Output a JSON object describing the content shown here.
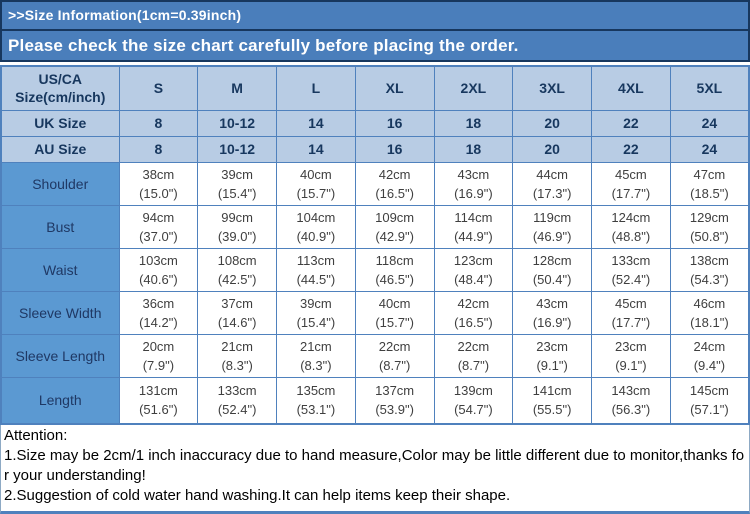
{
  "header": {
    "title": ">>Size Information(1cm=0.39inch)",
    "subtitle": "Please check the size chart carefully before placing the order."
  },
  "size_table": {
    "corner_label_line1": "US/CA",
    "corner_label_line2": "Size(cm/inch)",
    "sizes": [
      "S",
      "M",
      "L",
      "XL",
      "2XL",
      "3XL",
      "4XL",
      "5XL"
    ],
    "region_rows": [
      {
        "label": "UK Size",
        "values": [
          "8",
          "10-12",
          "14",
          "16",
          "18",
          "20",
          "22",
          "24"
        ]
      },
      {
        "label": "AU Size",
        "values": [
          "8",
          "10-12",
          "14",
          "16",
          "18",
          "20",
          "22",
          "24"
        ]
      }
    ],
    "measurement_rows": [
      {
        "label": "Shoulder",
        "cells": [
          [
            "38cm",
            "(15.0\")"
          ],
          [
            "39cm",
            "(15.4\")"
          ],
          [
            "40cm",
            "(15.7\")"
          ],
          [
            "42cm",
            "(16.5\")"
          ],
          [
            "43cm",
            "(16.9\")"
          ],
          [
            "44cm",
            "(17.3\")"
          ],
          [
            "45cm",
            "(17.7\")"
          ],
          [
            "47cm",
            "(18.5\")"
          ]
        ]
      },
      {
        "label": "Bust",
        "cells": [
          [
            "94cm",
            "(37.0\")"
          ],
          [
            "99cm",
            "(39.0\")"
          ],
          [
            "104cm",
            "(40.9\")"
          ],
          [
            "109cm",
            "(42.9\")"
          ],
          [
            "114cm",
            "(44.9\")"
          ],
          [
            "119cm",
            "(46.9\")"
          ],
          [
            "124cm",
            "(48.8\")"
          ],
          [
            "129cm",
            "(50.8\")"
          ]
        ]
      },
      {
        "label": "Waist",
        "cells": [
          [
            "103cm",
            "(40.6\")"
          ],
          [
            "108cm",
            "(42.5\")"
          ],
          [
            "113cm",
            "(44.5\")"
          ],
          [
            "118cm",
            "(46.5\")"
          ],
          [
            "123cm",
            "(48.4\")"
          ],
          [
            "128cm",
            "(50.4\")"
          ],
          [
            "133cm",
            "(52.4\")"
          ],
          [
            "138cm",
            "(54.3\")"
          ]
        ]
      },
      {
        "label": "Sleeve Width",
        "cells": [
          [
            "36cm",
            "(14.2\")"
          ],
          [
            "37cm",
            "(14.6\")"
          ],
          [
            "39cm",
            "(15.4\")"
          ],
          [
            "40cm",
            "(15.7\")"
          ],
          [
            "42cm",
            "(16.5\")"
          ],
          [
            "43cm",
            "(16.9\")"
          ],
          [
            "45cm",
            "(17.7\")"
          ],
          [
            "46cm",
            "(18.1\")"
          ]
        ]
      },
      {
        "label": "Sleeve Length",
        "cells": [
          [
            "20cm",
            "(7.9\")"
          ],
          [
            "21cm",
            "(8.3\")"
          ],
          [
            "21cm",
            "(8.3\")"
          ],
          [
            "22cm",
            "(8.7\")"
          ],
          [
            "22cm",
            "(8.7\")"
          ],
          [
            "23cm",
            "(9.1\")"
          ],
          [
            "23cm",
            "(9.1\")"
          ],
          [
            "24cm",
            "(9.4\")"
          ]
        ]
      },
      {
        "label": "Length",
        "cells": [
          [
            "131cm",
            "(51.6\")"
          ],
          [
            "133cm",
            "(52.4\")"
          ],
          [
            "135cm",
            "(53.1\")"
          ],
          [
            "137cm",
            "(53.9\")"
          ],
          [
            "139cm",
            "(54.7\")"
          ],
          [
            "141cm",
            "(55.5\")"
          ],
          [
            "143cm",
            "(56.3\")"
          ],
          [
            "145cm",
            "(57.1\")"
          ]
        ]
      }
    ]
  },
  "attention": {
    "title": "Attention:",
    "notes": [
      "1.Size may be 2cm/1 inch inaccuracy due to hand measure,Color may be little different due to monitor,thanks for your understanding!",
      "2.Suggestion of cold water hand washing.It can help items keep their shape."
    ]
  },
  "colors": {
    "bar_background": "#4A7EBB",
    "bar_border": "#17375E",
    "header_cell_background": "#B8CCE4",
    "label_cell_background": "#5B99D2",
    "grid_border": "#4F81BD",
    "header_text": "#17375E",
    "data_text": "#3F3F3F"
  }
}
